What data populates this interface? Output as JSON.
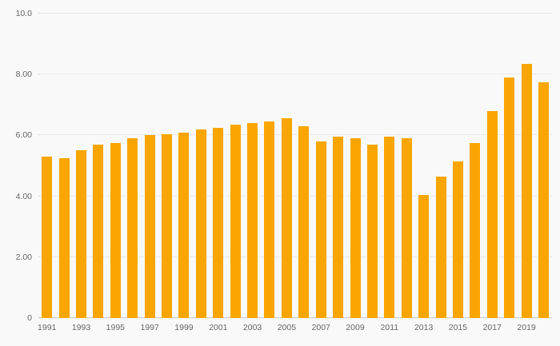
{
  "chart_data": {
    "type": "bar",
    "title": "",
    "xlabel": "",
    "ylabel": "",
    "ylim": [
      0,
      10
    ],
    "grid": true,
    "legend": "none",
    "bar_color": "#F9A602",
    "background_color": "#f9f9f9",
    "gridline_color": "#dcdcdc",
    "axis_text_color": "#666666",
    "categories": [
      1991,
      1992,
      1993,
      1994,
      1995,
      1996,
      1997,
      1998,
      1999,
      2000,
      2001,
      2002,
      2003,
      2004,
      2005,
      2006,
      2007,
      2008,
      2009,
      2010,
      2011,
      2012,
      2013,
      2014,
      2015,
      2016,
      2017,
      2018,
      2019,
      2020
    ],
    "values": [
      5.3,
      5.25,
      5.5,
      5.7,
      5.75,
      5.9,
      6.0,
      6.05,
      6.1,
      6.2,
      6.25,
      6.35,
      6.4,
      6.45,
      6.55,
      6.3,
      5.8,
      5.95,
      5.9,
      5.7,
      5.95,
      5.9,
      4.05,
      4.65,
      5.15,
      5.75,
      6.8,
      7.9,
      8.35,
      7.75
    ],
    "yticks": [
      {
        "value": 0,
        "label": "0"
      },
      {
        "value": 2,
        "label": "2.00"
      },
      {
        "value": 4,
        "label": "4.00"
      },
      {
        "value": 6,
        "label": "6.00"
      },
      {
        "value": 8,
        "label": "8.00"
      },
      {
        "value": 10,
        "label": "10.0"
      }
    ],
    "xtick_labels": [
      "1991",
      "1993",
      "1995",
      "1997",
      "1999",
      "2001",
      "2003",
      "2005",
      "2007",
      "2009",
      "2011",
      "2013",
      "2015",
      "2017",
      "2019"
    ]
  }
}
